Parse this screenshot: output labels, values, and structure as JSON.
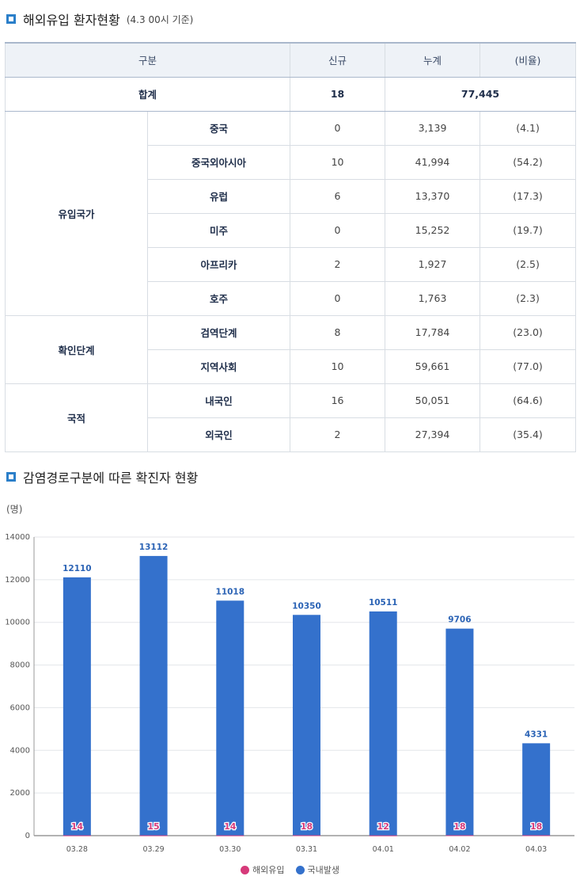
{
  "section1": {
    "title": "해외유입 환자현황",
    "note": "(4.3 00시 기준)"
  },
  "table": {
    "headers": [
      "구분",
      "신규",
      "누계",
      "(비율)"
    ],
    "total": {
      "label": "합계",
      "new": "18",
      "cumulative": "77,445"
    },
    "groups": [
      {
        "name": "유입국가",
        "rows": [
          {
            "label": "중국",
            "new": "0",
            "cumulative": "3,139",
            "ratio": "(4.1)"
          },
          {
            "label": "중국외아시아",
            "new": "10",
            "cumulative": "41,994",
            "ratio": "(54.2)"
          },
          {
            "label": "유럽",
            "new": "6",
            "cumulative": "13,370",
            "ratio": "(17.3)"
          },
          {
            "label": "미주",
            "new": "0",
            "cumulative": "15,252",
            "ratio": "(19.7)"
          },
          {
            "label": "아프리카",
            "new": "2",
            "cumulative": "1,927",
            "ratio": "(2.5)"
          },
          {
            "label": "호주",
            "new": "0",
            "cumulative": "1,763",
            "ratio": "(2.3)"
          }
        ]
      },
      {
        "name": "확인단계",
        "rows": [
          {
            "label": "검역단계",
            "new": "8",
            "cumulative": "17,784",
            "ratio": "(23.0)"
          },
          {
            "label": "지역사회",
            "new": "10",
            "cumulative": "59,661",
            "ratio": "(77.0)"
          }
        ]
      },
      {
        "name": "국적",
        "rows": [
          {
            "label": "내국인",
            "new": "16",
            "cumulative": "50,051",
            "ratio": "(64.6)"
          },
          {
            "label": "외국인",
            "new": "2",
            "cumulative": "27,394",
            "ratio": "(35.4)"
          }
        ]
      }
    ]
  },
  "section2": {
    "title": "감염경로구분에 따른 확진자 현황",
    "unit": "(명)"
  },
  "chart_data": {
    "type": "bar",
    "categories": [
      "03.28",
      "03.29",
      "03.30",
      "03.31",
      "04.01",
      "04.02",
      "04.03"
    ],
    "series": [
      {
        "name": "해외유입",
        "values": [
          14,
          15,
          14,
          18,
          12,
          18,
          18
        ],
        "color": "#d63a7a"
      },
      {
        "name": "국내발생",
        "values": [
          12110,
          13112,
          11018,
          10350,
          10511,
          9706,
          4331
        ],
        "color": "#3471cc"
      }
    ],
    "yticks": [
      0,
      2000,
      4000,
      6000,
      8000,
      10000,
      12000,
      14000
    ],
    "ylim": [
      0,
      14000
    ],
    "legend": "bottom-center",
    "grid": true
  }
}
